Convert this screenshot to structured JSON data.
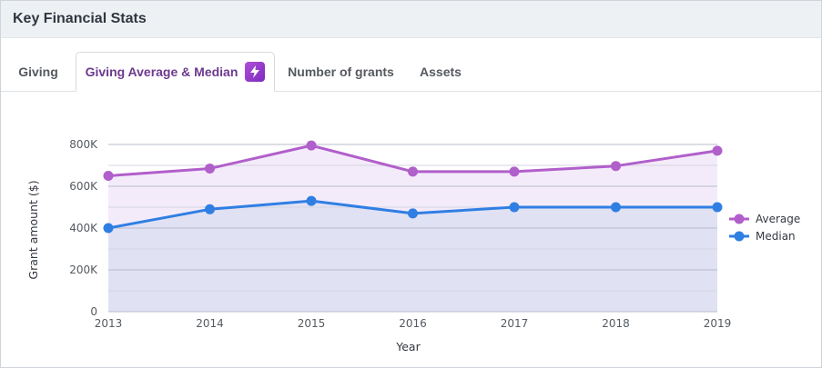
{
  "header": {
    "title": "Key Financial Stats"
  },
  "tabs": [
    {
      "label": "Giving",
      "active": false
    },
    {
      "label": "Giving Average & Median",
      "active": true,
      "badge_icon": "lightning-bolt-icon"
    },
    {
      "label": "Number of grants",
      "active": false
    },
    {
      "label": "Assets",
      "active": false
    }
  ],
  "colors": {
    "average": "#b15fcb",
    "median": "#2f7fe3",
    "average_fill": "#f4ebfa",
    "median_fill": "#e1e1f4",
    "grid": "#c9c9d6"
  },
  "chart_data": {
    "type": "area",
    "x": [
      "2013",
      "2014",
      "2015",
      "2016",
      "2017",
      "2018",
      "2019"
    ],
    "xlabel": "Year",
    "ylabel": "Grant amount ($)",
    "ylim": [
      0,
      800000
    ],
    "yticks": [
      0,
      200000,
      400000,
      600000,
      800000
    ],
    "ytick_labels": [
      "0",
      "200K",
      "400K",
      "600K",
      "800K"
    ],
    "grid": true,
    "legend_position": "right",
    "series": [
      {
        "name": "Average",
        "values": [
          650000,
          685000,
          795000,
          670000,
          670000,
          697000,
          770000
        ]
      },
      {
        "name": "Median",
        "values": [
          400000,
          490000,
          530000,
          470000,
          500000,
          500000,
          500000
        ]
      }
    ]
  }
}
